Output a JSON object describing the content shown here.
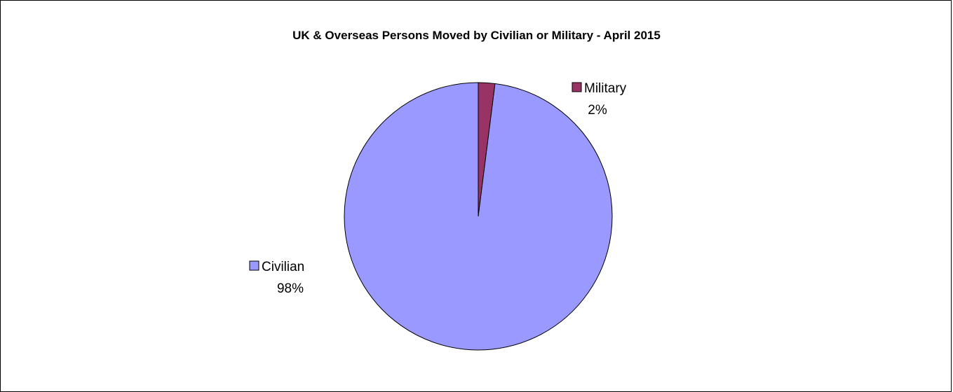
{
  "chart_data": {
    "type": "pie",
    "title": "UK & Overseas Persons Moved by Civilian or Military - April 2015",
    "legend": "none",
    "slices": [
      {
        "label": "Civilian",
        "value": 98,
        "percent_label": "98%",
        "color": "#9999FF"
      },
      {
        "label": "Military",
        "value": 2,
        "percent_label": "2%",
        "color": "#993366"
      }
    ]
  }
}
